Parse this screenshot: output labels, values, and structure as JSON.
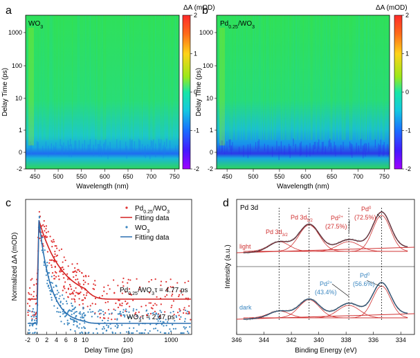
{
  "chart_data": [
    {
      "type": "heatmap",
      "panel_label": "a",
      "sample_label": "WO3",
      "xlabel": "Wavelength (nm)",
      "ylabel": "Delay Time (ps)",
      "x_range": [
        430,
        760
      ],
      "x_ticks": [
        "450",
        "500",
        "550",
        "600",
        "650",
        "700",
        "750"
      ],
      "y_ticks": [
        "-2",
        "0",
        "1",
        "10",
        "100",
        "1000"
      ],
      "y_scale": "linear below 10 ps, log above",
      "colorbar_label": "ΔA (mOD)",
      "colorbar_range": [
        -2,
        2
      ],
      "colorbar_ticks": [
        "2",
        "1",
        "0",
        "-1",
        "-2"
      ],
      "feature": "negative band ≈ -1 mOD near 0.3 ps across 450–750 nm, ~0 elsewhere"
    },
    {
      "type": "heatmap",
      "panel_label": "b",
      "sample_label": "Pd0.25/WO3",
      "sample_main": "Pd",
      "sample_sub": "0.25",
      "sample_tail": "/WO",
      "sample_sub2": "3",
      "xlabel": "Wavelength (nm)",
      "ylabel": "Delay Time (ps)",
      "x_range": [
        430,
        760
      ],
      "x_ticks": [
        "450",
        "500",
        "550",
        "600",
        "650",
        "700",
        "750"
      ],
      "y_ticks": [
        "-2",
        "0",
        "1",
        "10",
        "100",
        "1000"
      ],
      "colorbar_label": "ΔA (mOD)",
      "colorbar_range": [
        -2,
        2
      ],
      "colorbar_ticks": [
        "2",
        "1",
        "0",
        "-1",
        "-2"
      ],
      "feature": "stronger negative band ≈ -1.5 mOD near 0.3 ps"
    },
    {
      "type": "scatter",
      "panel_label": "c",
      "xlabel": "Delay Time (ps)",
      "ylabel": "Normalized ΔA (mOD)",
      "x_ticks_linear": [
        "-2",
        "0",
        "2",
        "4",
        "6",
        "8",
        "10"
      ],
      "x_ticks_log": [
        "100",
        "1000"
      ],
      "x_scale": "linear -2 to 10 ps, log 10 to 3000 ps",
      "series": [
        {
          "name": "Pd0.25/WO3",
          "kind": "points",
          "color": "#e03030",
          "tau_label": "Pd0.25/WO3 τ = 4.77 ps",
          "tau_ps": 4.77,
          "baseline_offset": 0.35
        },
        {
          "name": "Fitting data",
          "kind": "fit",
          "color": "#d42020"
        },
        {
          "name": "WO3",
          "kind": "points",
          "color": "#3a86c0",
          "tau_label": "WO3 τ = 2.47 ps",
          "tau_ps": 2.47,
          "baseline_offset": 0.0
        },
        {
          "name": "Fitting data",
          "kind": "fit",
          "color": "#2a6fb0"
        }
      ],
      "legend_labels": [
        "Pd0.25/WO3",
        "Fitting data",
        "WO3",
        "Fitting data"
      ],
      "annotations": {
        "pd_prefix": "Pd",
        "pd_sub": "0.25",
        "pd_mid": "/WO",
        "pd_sub2": "3",
        "pd_tau": " τ = 4.77 ps",
        "wo_main": "WO",
        "wo_sub": "3",
        "wo_tau": " τ = 2.47 ps"
      }
    },
    {
      "type": "line",
      "panel_label": "d",
      "title": "Pd 3d",
      "xlabel": "Binding Energy (eV)",
      "ylabel": "Intensity (a.u.)",
      "x_range": [
        346,
        333
      ],
      "x_ticks": [
        "346",
        "344",
        "342",
        "340",
        "338",
        "336",
        "334"
      ],
      "peak_positions_eV": [
        342.9,
        340.7,
        337.8,
        335.4
      ],
      "spectra": [
        {
          "name": "light",
          "color": "#d03030",
          "peak_labels": [
            "Pd 3d",
            "Pd 3d",
            "Pd",
            "Pd"
          ],
          "peak_subs": [
            "3/2",
            "5/2",
            "2+",
            "0"
          ],
          "peak_pcts": [
            "",
            "",
            "(27.5%)",
            "(72.5%)"
          ],
          "pd2_fraction": 27.5,
          "pd0_fraction": 72.5
        },
        {
          "name": "dark",
          "color": "#3a86c0",
          "peak_labels": [
            "Pd",
            "Pd"
          ],
          "peak_subs": [
            "2+",
            "0"
          ],
          "peak_pcts": [
            "(43.4%)",
            "(56.6%)"
          ],
          "pd2_fraction": 43.4,
          "pd0_fraction": 56.6
        }
      ]
    }
  ]
}
